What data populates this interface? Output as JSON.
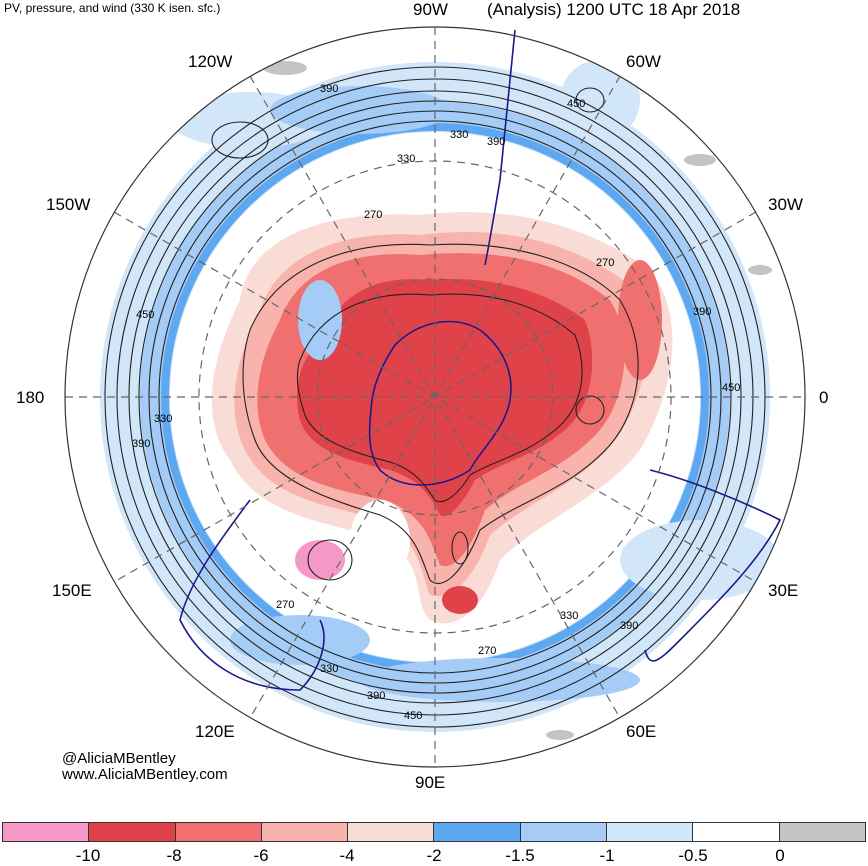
{
  "header": {
    "left_title": "PV, pressure, and wind (330 K isen. sfc.)",
    "right_title": "(Analysis) 1200 UTC 18 Apr 2018"
  },
  "longitude_labels": {
    "top": "90W",
    "top_right": "60W",
    "upper_right": "30W",
    "right": "0",
    "lower_right": "30E",
    "bottom_right": "60E",
    "bottom": "90E",
    "bottom_left": "120E",
    "lower_left": "150E",
    "left": "180",
    "upper_left": "150W",
    "top_left": "120W"
  },
  "contour_labels": [
    "390",
    "330",
    "390",
    "330",
    "450",
    "270",
    "270",
    "390",
    "450",
    "330",
    "390",
    "450",
    "270",
    "330",
    "390",
    "270",
    "330",
    "390",
    "450"
  ],
  "credits": {
    "handle": "@AliciaMBentley",
    "website": "www.AliciaMBentley.com"
  },
  "colorbar": {
    "colors": [
      "#f598c8",
      "#e0424a",
      "#f07070",
      "#f8b4ac",
      "#fadcd6",
      "#5ea8f2",
      "#a4ccf6",
      "#d2e6fa",
      "#ffffff",
      "#c4c4c4"
    ],
    "labels": [
      "-10",
      "-8",
      "-6",
      "-4",
      "-2",
      "-1.5",
      "-1",
      "-0.5",
      "0"
    ]
  },
  "map_style": {
    "projection": "south polar stereographic",
    "coastline_color": "#1a1a8a",
    "contour_color": "#222222",
    "graticule_color": "#666666"
  }
}
